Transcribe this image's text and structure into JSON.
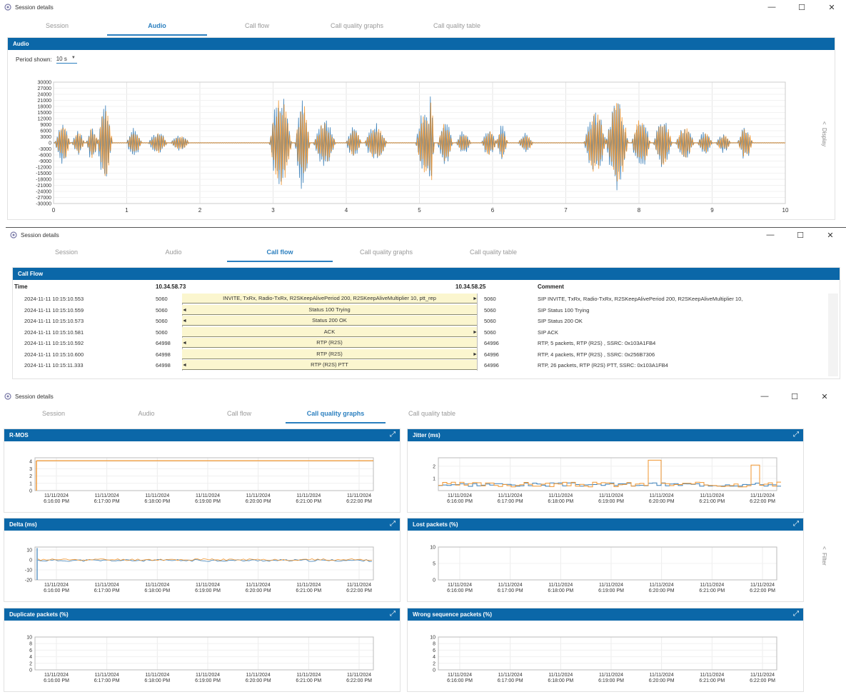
{
  "window_title": "Session details",
  "tabs": [
    "Session",
    "Audio",
    "Call flow",
    "Call quality graphs",
    "Call quality table"
  ],
  "audio": {
    "panel_title": "Audio",
    "period_label": "Period shown:",
    "period_value": "10 s",
    "side_label": "Display",
    "chart_data": {
      "type": "line",
      "series_colors": [
        "#3a7fb8",
        "#f0952f"
      ],
      "ylim": [
        -30000,
        30000
      ],
      "y_ticks": [
        30000,
        27000,
        24000,
        21000,
        18000,
        15000,
        12000,
        9000,
        6000,
        3000,
        0,
        -3000,
        -6000,
        -9000,
        -12000,
        -15000,
        -18000,
        -21000,
        -24000,
        -27000,
        -30000
      ],
      "x_ticks": [
        0,
        1,
        2,
        3,
        4,
        5,
        6,
        7,
        8,
        9,
        10
      ],
      "xlim": [
        0,
        10
      ],
      "bursts": [
        {
          "t0": 0.02,
          "t1": 0.22,
          "amp": 11000
        },
        {
          "t0": 0.25,
          "t1": 0.42,
          "amp": 6000
        },
        {
          "t0": 0.45,
          "t1": 0.6,
          "amp": 9000
        },
        {
          "t0": 0.6,
          "t1": 0.8,
          "amp": 21000
        },
        {
          "t0": 1.0,
          "t1": 1.2,
          "amp": 8000
        },
        {
          "t0": 1.3,
          "t1": 1.55,
          "amp": 6000
        },
        {
          "t0": 1.6,
          "t1": 1.85,
          "amp": 4000
        },
        {
          "t0": 2.95,
          "t1": 3.25,
          "amp": 27000
        },
        {
          "t0": 3.3,
          "t1": 3.5,
          "amp": 24000
        },
        {
          "t0": 3.55,
          "t1": 3.85,
          "amp": 12000
        },
        {
          "t0": 4.0,
          "t1": 4.2,
          "amp": 8000
        },
        {
          "t0": 4.25,
          "t1": 4.55,
          "amp": 10000
        },
        {
          "t0": 4.95,
          "t1": 5.2,
          "amp": 18000
        },
        {
          "t0": 5.1,
          "t1": 5.2,
          "amp": 24000
        },
        {
          "t0": 5.25,
          "t1": 5.45,
          "amp": 12000
        },
        {
          "t0": 5.5,
          "t1": 5.7,
          "amp": 6000
        },
        {
          "t0": 5.85,
          "t1": 6.05,
          "amp": 7000
        },
        {
          "t0": 6.05,
          "t1": 6.2,
          "amp": 9000
        },
        {
          "t0": 6.35,
          "t1": 6.55,
          "amp": 5000
        },
        {
          "t0": 7.25,
          "t1": 7.55,
          "amp": 18000
        },
        {
          "t0": 7.55,
          "t1": 7.85,
          "amp": 24000
        },
        {
          "t0": 7.9,
          "t1": 8.15,
          "amp": 15000
        },
        {
          "t0": 8.2,
          "t1": 8.45,
          "amp": 13000
        },
        {
          "t0": 8.5,
          "t1": 8.75,
          "amp": 9000
        },
        {
          "t0": 8.8,
          "t1": 9.0,
          "amp": 6000
        },
        {
          "t0": 9.05,
          "t1": 9.25,
          "amp": 5000
        },
        {
          "t0": 9.35,
          "t1": 9.55,
          "amp": 9000
        }
      ]
    }
  },
  "callflow": {
    "panel_title": "Call Flow",
    "col_time": "Time",
    "col_left": "10.34.58.73",
    "col_right": "10.34.58.25",
    "col_comment": "Comment",
    "rows": [
      {
        "time": "2024-11-11 10:15:10.553",
        "lport": "5060",
        "msg": "INVITE, TxRx, Radio-TxRx, R2SKeepAlivePeriod 200, R2SKeepAliveMultiplier 10, ptt_rep",
        "rport": "5060",
        "dir": "right",
        "comment": "SIP INVITE, TxRx, Radio-TxRx, R2SKeepAlivePeriod 200, R2SKeepAliveMultiplier 10,"
      },
      {
        "time": "2024-11-11 10:15:10.559",
        "lport": "5060",
        "msg": "Status 100 Trying",
        "rport": "5060",
        "dir": "left",
        "comment": "SIP Status 100 Trying"
      },
      {
        "time": "2024-11-11 10:15:10.573",
        "lport": "5060",
        "msg": "Status 200 OK",
        "rport": "5060",
        "dir": "left",
        "comment": "SIP Status 200 OK"
      },
      {
        "time": "2024-11-11 10:15:10.581",
        "lport": "5060",
        "msg": "ACK",
        "rport": "5060",
        "dir": "right",
        "comment": "SIP ACK"
      },
      {
        "time": "2024-11-11 10:15:10.592",
        "lport": "64998",
        "msg": "RTP (R2S)",
        "rport": "64996",
        "dir": "left",
        "comment": "RTP, 5 packets, RTP (R2S) , SSRC: 0x103A1FB4"
      },
      {
        "time": "2024-11-11 10:15:10.600",
        "lport": "64998",
        "msg": "RTP (R2S)",
        "rport": "64996",
        "dir": "right",
        "comment": "RTP, 4 packets, RTP (R2S) , SSRC: 0x256B7306"
      },
      {
        "time": "2024-11-11 10:15:11.333",
        "lport": "64998",
        "msg": "RTP (R2S) PTT",
        "rport": "64996",
        "dir": "left",
        "comment": "RTP, 26 packets, RTP (R2S) PTT, SSRC: 0x103A1FB4"
      }
    ]
  },
  "quality": {
    "side_label": "Filter",
    "time_ticks": [
      "11/11/2024 6:16:00 PM",
      "11/11/2024 6:17:00 PM",
      "11/11/2024 6:18:00 PM",
      "11/11/2024 6:19:00 PM",
      "11/11/2024 6:20:00 PM",
      "11/11/2024 6:21:00 PM",
      "11/11/2024 6:22:00 PM"
    ],
    "charts": [
      {
        "title": "R-MOS",
        "y_ticks": [
          4,
          3,
          2,
          1,
          0
        ],
        "ylim": [
          0,
          4.5
        ],
        "kind": "rmos"
      },
      {
        "title": "Jitter (ms)",
        "y_ticks": [
          2,
          1
        ],
        "ylim": [
          0,
          2.7
        ],
        "kind": "jitter"
      },
      {
        "title": "Delta (ms)",
        "y_ticks": [
          10,
          0,
          -10,
          -20
        ],
        "ylim": [
          -20,
          13
        ],
        "kind": "delta"
      },
      {
        "title": "Lost packets (%)",
        "y_ticks": [
          10,
          5,
          0
        ],
        "ylim": [
          0,
          10
        ],
        "kind": "empty"
      },
      {
        "title": "Duplicate packets (%)",
        "y_ticks": [
          10,
          8,
          6,
          4,
          2,
          0
        ],
        "ylim": [
          0,
          10
        ],
        "kind": "empty"
      },
      {
        "title": "Wrong sequence packets (%)",
        "y_ticks": [
          10,
          8,
          6,
          4,
          2,
          0
        ],
        "ylim": [
          0,
          10
        ],
        "kind": "empty"
      }
    ]
  }
}
